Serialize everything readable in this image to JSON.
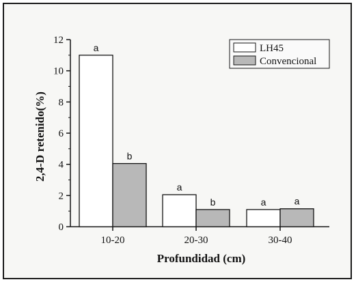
{
  "chart_data": {
    "type": "bar",
    "title": "",
    "xlabel": "Profundidad (cm)",
    "ylabel": "2,4-D retenido(%)",
    "categories": [
      "10-20",
      "20-30",
      "30-40"
    ],
    "ylim": [
      0,
      12
    ],
    "yticks": [
      "0",
      "2",
      "4",
      "6",
      "8",
      "10",
      "12"
    ],
    "series": [
      {
        "name": "LH45",
        "values": [
          11.0,
          2.05,
          1.1
        ],
        "color": "#ffffff",
        "labels": [
          "a",
          "a",
          "a"
        ]
      },
      {
        "name": "Convencional",
        "values": [
          4.05,
          1.1,
          1.15
        ],
        "color": "#b8b8b8",
        "labels": [
          "b",
          "b",
          "a"
        ]
      }
    ],
    "legend": "top-right",
    "grid": false
  }
}
